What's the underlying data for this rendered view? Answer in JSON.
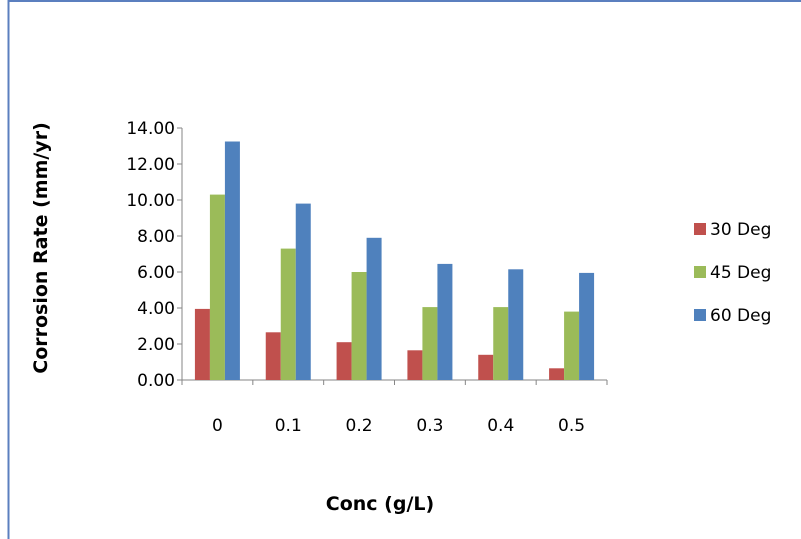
{
  "chart_data": {
    "type": "bar",
    "title": "",
    "xlabel": "Conc (g/L)",
    "ylabel": "Corrosion Rate (mm/yr)",
    "categories": [
      "0",
      "0.1",
      "0.2",
      "0.3",
      "0.4",
      "0.5"
    ],
    "ylim": [
      0,
      14
    ],
    "yticks": [
      "0.00",
      "2.00",
      "4.00",
      "6.00",
      "8.00",
      "10.00",
      "12.00",
      "14.00"
    ],
    "grid": false,
    "legend_position": "right",
    "series": [
      {
        "name": "30 Deg",
        "color": "#c0504d",
        "values": [
          3.95,
          2.65,
          2.1,
          1.65,
          1.4,
          0.65
        ]
      },
      {
        "name": "45 Deg",
        "color": "#9bbb59",
        "values": [
          10.3,
          7.3,
          6.0,
          4.05,
          4.05,
          3.8
        ]
      },
      {
        "name": "60 Deg",
        "color": "#4f81bd",
        "values": [
          13.25,
          9.8,
          7.9,
          6.45,
          6.15,
          5.95
        ]
      }
    ]
  }
}
